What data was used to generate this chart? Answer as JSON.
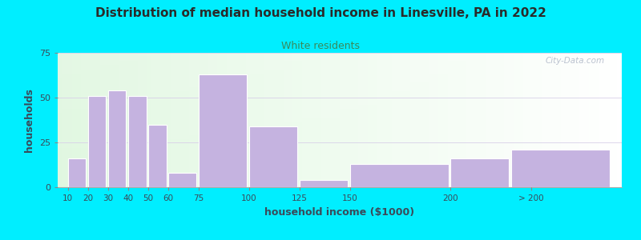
{
  "title": "Distribution of median household income in Linesville, PA in 2022",
  "subtitle": "White residents",
  "xlabel": "household income ($1000)",
  "ylabel": "households",
  "background_outer": "#00eeff",
  "bar_color": "#c5b3e0",
  "title_color": "#2a2a2a",
  "subtitle_color": "#3a8a5a",
  "ylabel_color": "#3a4a5a",
  "xlabel_color": "#3a4a5a",
  "tick_color": "#3a4a5a",
  "grid_color": "#d8d0e8",
  "categories": [
    "10",
    "20",
    "30",
    "40",
    "50",
    "60",
    "75",
    "100",
    "125",
    "150",
    "200",
    "> 200"
  ],
  "values": [
    16,
    51,
    54,
    51,
    35,
    8,
    63,
    34,
    4,
    13,
    16,
    21
  ],
  "bar_lefts": [
    10,
    20,
    30,
    40,
    50,
    60,
    75,
    100,
    125,
    150,
    200,
    230
  ],
  "bar_widths": [
    9,
    9,
    9,
    9,
    9,
    14,
    24,
    24,
    24,
    49,
    29,
    49
  ],
  "xtick_pos": [
    10,
    20,
    30,
    40,
    50,
    60,
    75,
    100,
    125,
    150,
    200,
    240
  ],
  "xtick_labels": [
    "10",
    "20",
    "30",
    "40",
    "50",
    "60",
    "75",
    "100",
    "125",
    "150",
    "200",
    "> 200"
  ],
  "ylim": [
    0,
    75
  ],
  "xlim": [
    5,
    285
  ],
  "yticks": [
    0,
    25,
    50,
    75
  ],
  "watermark": "City-Data.com"
}
